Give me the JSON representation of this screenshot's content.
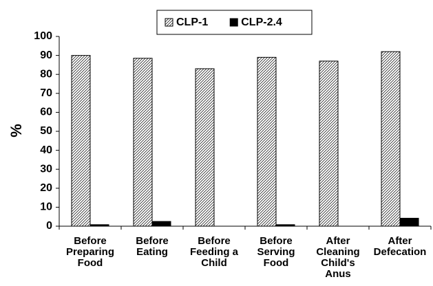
{
  "chart_data": {
    "type": "bar",
    "categories": [
      "Before Preparing Food",
      "Before Eating",
      "Before Feeding a Child",
      "Before Serving Food",
      "After Cleaning Child's Anus",
      "After Defecation"
    ],
    "series": [
      {
        "name": "CLP-1",
        "color": "#000000",
        "pattern": "hatch",
        "values": [
          90,
          88.5,
          83,
          89,
          87,
          92
        ]
      },
      {
        "name": "CLP-2.4",
        "color": "#000000",
        "pattern": "solid",
        "values": [
          0.8,
          2.5,
          0,
          0.8,
          0,
          4.2
        ]
      }
    ],
    "ylabel": "%",
    "ylim": [
      0,
      100
    ],
    "yticks": [
      0,
      10,
      20,
      30,
      40,
      50,
      60,
      70,
      80,
      90,
      100
    ],
    "grid": false,
    "legend": "top"
  }
}
